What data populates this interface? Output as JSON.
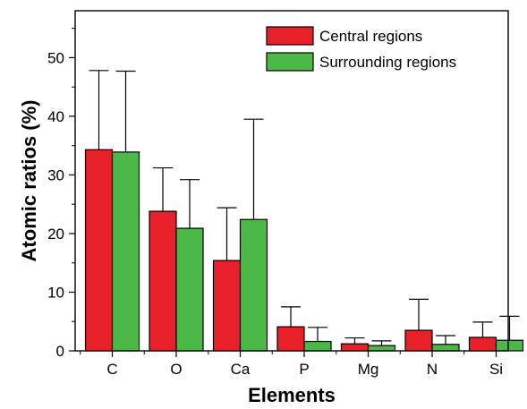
{
  "chart_data": {
    "type": "bar",
    "title": "",
    "xlabel": "Elements",
    "ylabel": "Atomic ratios (%)",
    "categories": [
      "C",
      "O",
      "Ca",
      "P",
      "Mg",
      "N",
      "Si"
    ],
    "ylim": [
      0,
      58
    ],
    "yticks": [
      "0",
      "10",
      "20",
      "30",
      "40",
      "50"
    ],
    "grid": false,
    "legend_position": "top-right",
    "series": [
      {
        "name": "Central regions",
        "color": "#e8202a",
        "values": [
          34.3,
          23.8,
          15.4,
          4.1,
          1.2,
          3.5,
          2.3
        ],
        "error_upper": [
          13.5,
          7.4,
          9.0,
          3.4,
          1.0,
          5.3,
          2.6
        ]
      },
      {
        "name": "Surrounding regions",
        "color": "#4cb848",
        "values": [
          33.9,
          20.9,
          22.4,
          1.6,
          0.9,
          1.1,
          1.8
        ],
        "error_upper": [
          13.8,
          8.3,
          17.1,
          2.4,
          0.8,
          1.5,
          4.1
        ]
      }
    ]
  }
}
